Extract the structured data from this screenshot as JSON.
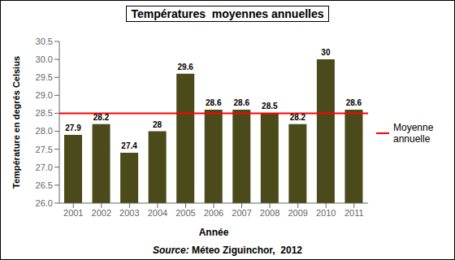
{
  "chart_data": {
    "type": "bar",
    "title": "Températures  moyennes annuelles",
    "x_label": "Année",
    "y_label": "Température en degrés Celsius",
    "categories": [
      "2001",
      "2002",
      "2003",
      "2004",
      "2005",
      "2006",
      "2007",
      "2008",
      "2009",
      "2010",
      "2011"
    ],
    "values": [
      27.9,
      28.2,
      27.4,
      28.0,
      29.6,
      28.6,
      28.6,
      28.5,
      28.2,
      30.0,
      28.6
    ],
    "color": "#4a4a1a",
    "ylim": [
      26.0,
      30.5
    ],
    "yticks": [
      {
        "value": 26,
        "label": "26.0"
      },
      26.5,
      {
        "value": 27,
        "label": "27.0"
      },
      27.5,
      {
        "value": 28,
        "label": "28.0"
      },
      28.5,
      {
        "value": 29,
        "label": "29.0"
      },
      29.5,
      {
        "value": 30,
        "label": "30.0"
      },
      30.5
    ],
    "data_labels": true,
    "grid": false,
    "mean_line": {
      "name": "Moyenne\nannuelle",
      "value": 28.5,
      "color": "#ff0000"
    },
    "legend": "right",
    "source": {
      "label": "Source:",
      "text": " Méteo Ziguinchor,  2012"
    }
  }
}
